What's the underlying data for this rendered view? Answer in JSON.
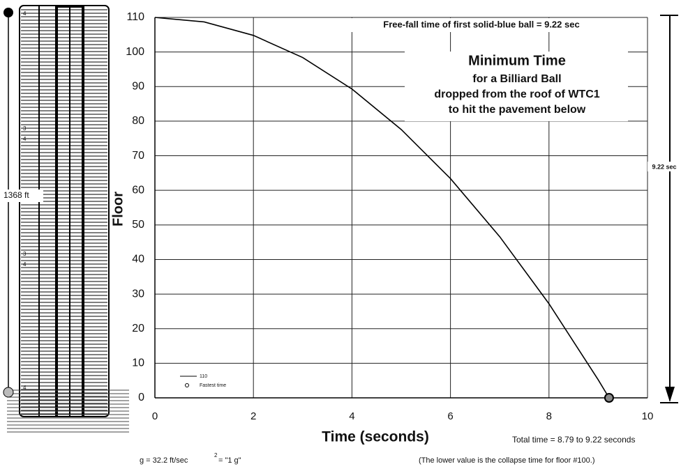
{
  "chart_data": {
    "type": "line",
    "title": "Minimum Time",
    "subtitle": [
      "for a Billiard Ball",
      "dropped from the roof of WTC1",
      "to hit the pavement below"
    ],
    "xlabel": "Time  (seconds)",
    "ylabel": "Floor",
    "xlim": [
      0,
      10
    ],
    "ylim": [
      0,
      110
    ],
    "xticks": [
      0,
      2,
      4,
      6,
      8,
      10
    ],
    "yticks": [
      0,
      10,
      20,
      30,
      40,
      50,
      60,
      70,
      80,
      90,
      100,
      110
    ],
    "grid": true,
    "legend": "lower left",
    "series": [
      {
        "name": "110",
        "color": "#000000",
        "marker": "none",
        "x": [
          0,
          1,
          2,
          3,
          4,
          5,
          6,
          7,
          8,
          9,
          9.22
        ],
        "values": [
          110,
          108.7,
          104.8,
          98.4,
          89.3,
          77.6,
          63.4,
          46.6,
          27.2,
          5.2,
          0
        ]
      },
      {
        "name": "Fastest time",
        "color": "#000000",
        "marker": "circle",
        "x": [
          9.22
        ],
        "values": [
          0
        ]
      }
    ],
    "annotations": {
      "freefall": "Free-fall time of first solid-blue ball  =  9.22 sec",
      "right_arrow": "9.22 sec",
      "total": "Total time = 8.79 to 9.22 seconds",
      "note": "(The lower value is the collapse time for floor #100.)",
      "gravity": [
        "g = 32.2  ft/sec",
        "2",
        " = \"1 g\""
      ],
      "height": "1368  ft",
      "floor_marks": [
        "4",
        "3",
        "4",
        "3",
        "4",
        "4"
      ]
    }
  }
}
